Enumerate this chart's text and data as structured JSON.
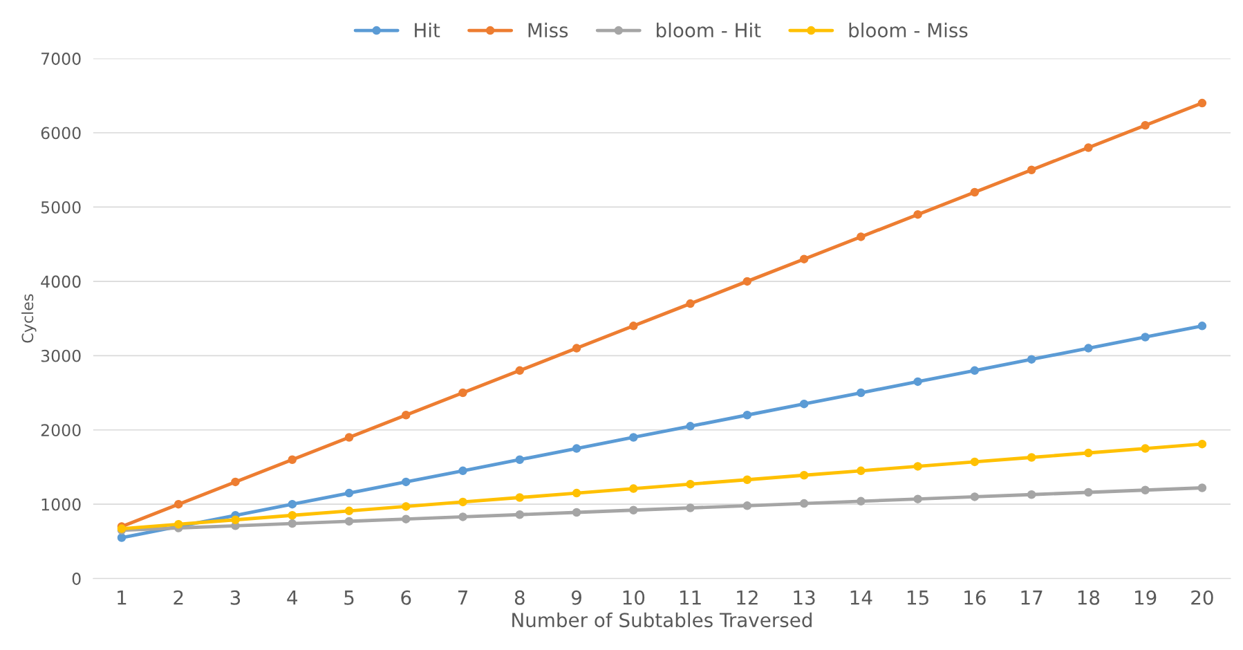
{
  "chart_data": {
    "type": "line",
    "xlabel": "Number of Subtables Traversed",
    "ylabel": "Cycles",
    "categories": [
      "1",
      "2",
      "3",
      "4",
      "5",
      "6",
      "7",
      "8",
      "9",
      "10",
      "11",
      "12",
      "13",
      "14",
      "15",
      "16",
      "17",
      "18",
      "19",
      "20"
    ],
    "series": [
      {
        "name": "Hit",
        "color": "#5b9bd5",
        "values": [
          550,
          700,
          850,
          1000,
          1150,
          1300,
          1450,
          1600,
          1750,
          1900,
          2050,
          2200,
          2350,
          2500,
          2650,
          2800,
          2950,
          3100,
          3250,
          3400
        ]
      },
      {
        "name": "Miss",
        "color": "#ed7d31",
        "values": [
          700,
          1000,
          1300,
          1600,
          1900,
          2200,
          2500,
          2800,
          3100,
          3400,
          3700,
          4000,
          4300,
          4600,
          4900,
          5200,
          5500,
          5800,
          6100,
          6400
        ]
      },
      {
        "name": "bloom - Hit",
        "color": "#a5a5a5",
        "values": [
          650,
          680,
          710,
          740,
          770,
          800,
          830,
          860,
          890,
          920,
          950,
          980,
          1010,
          1040,
          1070,
          1100,
          1130,
          1160,
          1190,
          1220
        ]
      },
      {
        "name": "bloom - Miss",
        "color": "#ffc000",
        "values": [
          670,
          730,
          790,
          850,
          910,
          970,
          1030,
          1090,
          1150,
          1210,
          1270,
          1330,
          1390,
          1450,
          1510,
          1570,
          1630,
          1690,
          1750,
          1810
        ]
      }
    ],
    "ylim": [
      0,
      7000
    ],
    "yticks": [
      0,
      1000,
      2000,
      3000,
      4000,
      5000,
      6000,
      7000
    ],
    "grid": "y",
    "legend": "top",
    "marker": "circle",
    "line_style": "solid"
  }
}
